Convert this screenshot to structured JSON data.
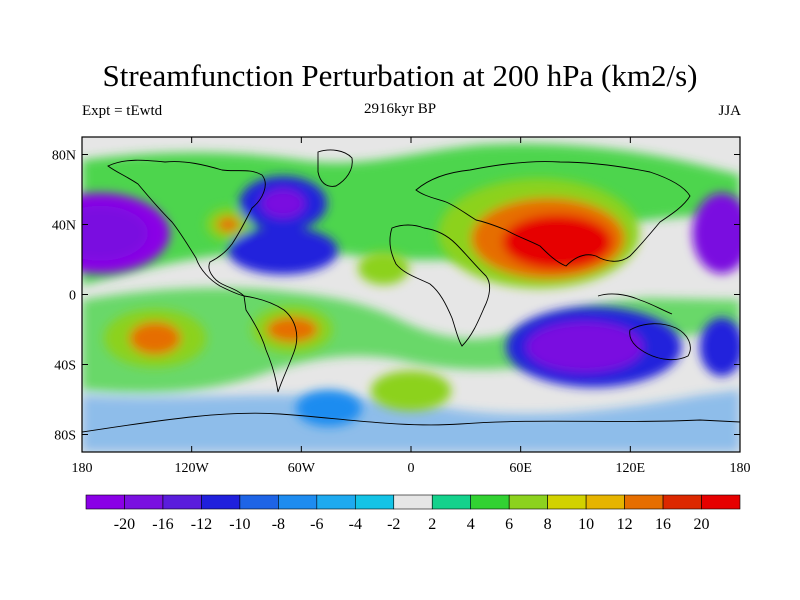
{
  "title": "Streamfunction Perturbation at 200 hPa (km2/s)",
  "subtitle_left": "Expt = tEwtd",
  "subtitle_center": "2916kyr BP",
  "subtitle_right": "JJA",
  "lat_ticks": [
    "80N",
    "40N",
    "0",
    "40S",
    "80S"
  ],
  "lat_values": [
    80,
    40,
    0,
    -40,
    -80
  ],
  "lon_ticks": [
    "180",
    "120W",
    "60W",
    "0",
    "60E",
    "120E",
    "180"
  ],
  "lon_values": [
    -180,
    -120,
    -60,
    0,
    60,
    120,
    180
  ],
  "colorbar": {
    "labels": [
      "-20",
      "-16",
      "-12",
      "-10",
      "-8",
      "-6",
      "-4",
      "-2",
      "2",
      "4",
      "6",
      "8",
      "10",
      "12",
      "16",
      "20"
    ],
    "colors": [
      "#8a00e6",
      "#7a10e0",
      "#5a1ddc",
      "#2020dc",
      "#1e64e6",
      "#1e8cf0",
      "#1eaaf0",
      "#14c3e6",
      "#e6e6e6",
      "#14d28c",
      "#32d232",
      "#8cd21e",
      "#d2d200",
      "#e6b400",
      "#e66e00",
      "#dc2800",
      "#e60000"
    ]
  },
  "field_blobs": [
    {
      "lon": -170,
      "lat": 35,
      "rx": 38,
      "ry": 22,
      "level": 0
    },
    {
      "lon": -170,
      "lat": 35,
      "rx": 26,
      "ry": 15,
      "level": 1
    },
    {
      "lon": -100,
      "lat": 40,
      "rx": 12,
      "ry": 9,
      "level": 11
    },
    {
      "lon": -100,
      "lat": 40,
      "rx": 6,
      "ry": 4,
      "level": 14
    },
    {
      "lon": -70,
      "lat": 25,
      "rx": 30,
      "ry": 13,
      "level": 3
    },
    {
      "lon": -70,
      "lat": 52,
      "rx": 24,
      "ry": 15,
      "level": 3
    },
    {
      "lon": -70,
      "lat": 52,
      "rx": 12,
      "ry": 8,
      "level": 1
    },
    {
      "lon": -15,
      "lat": 15,
      "rx": 14,
      "ry": 9,
      "level": 11
    },
    {
      "lon": 70,
      "lat": 35,
      "rx": 55,
      "ry": 30,
      "level": 11
    },
    {
      "lon": 75,
      "lat": 32,
      "rx": 42,
      "ry": 22,
      "level": 14
    },
    {
      "lon": 80,
      "lat": 30,
      "rx": 30,
      "ry": 15,
      "level": 16
    },
    {
      "lon": -140,
      "lat": -25,
      "rx": 28,
      "ry": 16,
      "level": 11
    },
    {
      "lon": -140,
      "lat": -25,
      "rx": 14,
      "ry": 9,
      "level": 14
    },
    {
      "lon": -65,
      "lat": -20,
      "rx": 22,
      "ry": 13,
      "level": 11
    },
    {
      "lon": -65,
      "lat": -20,
      "rx": 14,
      "ry": 7,
      "level": 14
    },
    {
      "lon": 0,
      "lat": -55,
      "rx": 22,
      "ry": 11,
      "level": 11
    },
    {
      "lon": 100,
      "lat": -30,
      "rx": 48,
      "ry": 22,
      "level": 3
    },
    {
      "lon": 95,
      "lat": -30,
      "rx": 32,
      "ry": 14,
      "level": 1
    },
    {
      "lon": -45,
      "lat": -65,
      "rx": 18,
      "ry": 10,
      "level": 5
    },
    {
      "lon": 170,
      "lat": 35,
      "rx": 16,
      "ry": 22,
      "level": 1
    },
    {
      "lon": 170,
      "lat": -30,
      "rx": 12,
      "ry": 16,
      "level": 3
    }
  ]
}
